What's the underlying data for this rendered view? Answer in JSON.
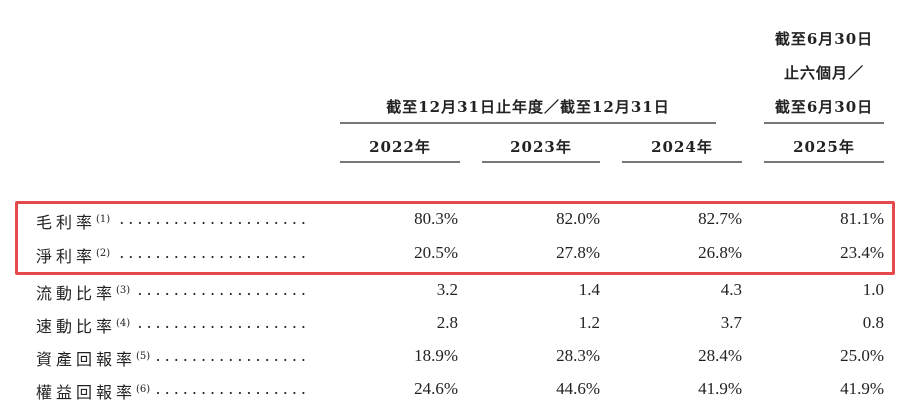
{
  "header": {
    "group_label": "截至12月31日止年度／截至12月31日",
    "period_label_lines": [
      "截至6月30日",
      "止六個月／",
      "截至6月30日"
    ],
    "years": [
      "2022年",
      "2023年",
      "2024年",
      "2025年"
    ]
  },
  "rows": [
    {
      "label": "毛利率",
      "note": "(1)",
      "values": [
        "80.3%",
        "82.0%",
        "82.7%",
        "81.1%"
      ]
    },
    {
      "label": "淨利率",
      "note": "(2)",
      "values": [
        "20.5%",
        "27.8%",
        "26.8%",
        "23.4%"
      ]
    },
    {
      "label": "流動比率",
      "note": "(3)",
      "values": [
        "3.2",
        "1.4",
        "4.3",
        "1.0"
      ]
    },
    {
      "label": "速動比率",
      "note": "(4)",
      "values": [
        "2.8",
        "1.2",
        "3.7",
        "0.8"
      ]
    },
    {
      "label": "資產回報率",
      "note": "(5)",
      "values": [
        "18.9%",
        "28.3%",
        "28.4%",
        "25.0%"
      ]
    },
    {
      "label": "權益回報率",
      "note": "(6)",
      "values": [
        "24.6%",
        "44.6%",
        "41.9%",
        "41.9%"
      ]
    }
  ],
  "highlight_color": "#e5484d"
}
